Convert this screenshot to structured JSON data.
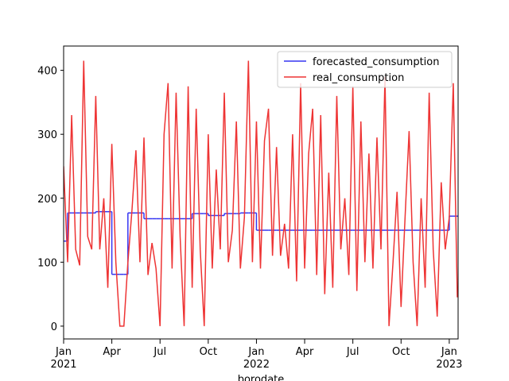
{
  "chart_data": {
    "type": "line",
    "x_label": "borodate",
    "x": [
      0,
      0.25,
      0.5,
      0.75,
      1,
      1.25,
      1.5,
      1.75,
      2,
      2.25,
      2.5,
      2.75,
      3,
      3.25,
      3.5,
      3.75,
      4,
      4.25,
      4.5,
      4.75,
      5,
      5.25,
      5.5,
      5.75,
      6,
      6.25,
      6.5,
      6.75,
      7,
      7.25,
      7.5,
      7.75,
      8,
      8.25,
      8.5,
      8.75,
      9,
      9.25,
      9.5,
      9.75,
      10,
      10.25,
      10.5,
      10.75,
      11,
      11.25,
      11.5,
      11.75,
      12,
      12.25,
      12.5,
      12.75,
      13,
      13.25,
      13.5,
      13.75,
      14,
      14.25,
      14.5,
      14.75,
      15,
      15.25,
      15.5,
      15.75,
      16,
      16.25,
      16.5,
      16.75,
      17,
      17.25,
      17.5,
      17.75,
      18,
      18.25,
      18.5,
      18.75,
      19,
      19.25,
      19.5,
      19.75,
      20,
      20.25,
      20.5,
      20.75,
      21,
      21.25,
      21.5,
      21.75,
      22,
      22.25,
      22.5,
      22.75,
      23,
      23.25,
      23.5,
      23.75,
      24,
      24.25,
      24.5
    ],
    "series": [
      {
        "name": "forecasted_consumption",
        "color": "#3535f2",
        "step": "post",
        "values": [
          133,
          177,
          177,
          177,
          177,
          177,
          177,
          177,
          179,
          179,
          179,
          179,
          81,
          81,
          81,
          81,
          177,
          177,
          177,
          177,
          168,
          168,
          168,
          168,
          168,
          168,
          168,
          168,
          168,
          168,
          168,
          168,
          176,
          176,
          176,
          176,
          173,
          173,
          173,
          173,
          176,
          176,
          176,
          176,
          177,
          177,
          177,
          177,
          150,
          150,
          150,
          150,
          150,
          150,
          150,
          150,
          150,
          150,
          150,
          150,
          150,
          150,
          150,
          150,
          150,
          150,
          150,
          150,
          150,
          150,
          150,
          150,
          150,
          150,
          150,
          150,
          150,
          150,
          150,
          150,
          150,
          150,
          150,
          150,
          150,
          150,
          150,
          150,
          150,
          150,
          150,
          150,
          150,
          150,
          150,
          150,
          172,
          172,
          172
        ]
      },
      {
        "name": "real_consumption",
        "color": "#ee3434",
        "values": [
          250,
          100,
          330,
          120,
          95,
          415,
          140,
          120,
          360,
          120,
          200,
          60,
          285,
          100,
          0,
          0,
          100,
          180,
          275,
          100,
          295,
          80,
          130,
          90,
          0,
          300,
          380,
          90,
          365,
          140,
          0,
          375,
          60,
          340,
          120,
          0,
          300,
          90,
          245,
          120,
          365,
          100,
          150,
          320,
          90,
          170,
          415,
          100,
          320,
          90,
          290,
          340,
          110,
          280,
          110,
          160,
          90,
          300,
          70,
          380,
          90,
          270,
          340,
          80,
          330,
          50,
          240,
          60,
          360,
          120,
          200,
          80,
          375,
          55,
          320,
          100,
          270,
          90,
          295,
          120,
          390,
          0,
          100,
          210,
          30,
          170,
          305,
          100,
          0,
          200,
          60,
          365,
          120,
          15,
          225,
          120,
          170,
          380,
          45
        ]
      }
    ],
    "xlim": [
      0,
      24.55
    ],
    "xticks": [
      {
        "value": 0,
        "label": "Jan\n2021"
      },
      {
        "value": 3,
        "label": "Apr"
      },
      {
        "value": 6,
        "label": "Jul"
      },
      {
        "value": 9,
        "label": "Oct"
      },
      {
        "value": 12,
        "label": "Jan\n2022"
      },
      {
        "value": 15,
        "label": "Apr"
      },
      {
        "value": 18,
        "label": "Jul"
      },
      {
        "value": 21,
        "label": "Oct"
      },
      {
        "value": 24,
        "label": "Jan\n2023"
      }
    ],
    "ylim": [
      -20,
      438
    ],
    "yticks": [
      0,
      100,
      200,
      300,
      400
    ],
    "legend": "upper right"
  }
}
